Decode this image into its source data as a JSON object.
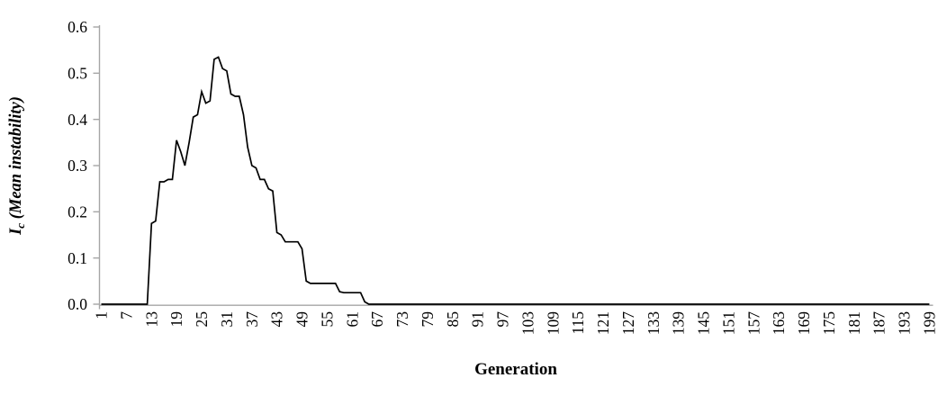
{
  "figure": {
    "background_color": "#ffffff",
    "series_color": "#000000",
    "axis_color": "#a6a6a6",
    "text_color": "#000000"
  },
  "chart_data": {
    "type": "line",
    "title": "",
    "xlabel": "Generation",
    "ylabel": "Ic (Mean instability)",
    "ylabel_parts": {
      "symbol": "I",
      "subscript": "c",
      "rest": " (Mean instability)"
    },
    "legend": "none",
    "grid": "off",
    "ylim": [
      0,
      0.6
    ],
    "y_tick_labels": [
      "0.6",
      "0.5",
      "0.4",
      "0.3",
      "0.2",
      "0.1",
      "0.0"
    ],
    "x_start": 1,
    "x_end": 199,
    "x_tick_step": 6,
    "x_tick_labels": [
      1,
      7,
      13,
      19,
      25,
      31,
      37,
      43,
      49,
      55,
      61,
      67,
      73,
      79,
      85,
      91,
      97,
      103,
      109,
      115,
      121,
      127,
      133,
      139,
      145,
      151,
      157,
      163,
      169,
      175,
      181,
      187,
      193,
      199
    ],
    "x_tick_label_rotation": -90,
    "series": [
      {
        "name": "mean instability",
        "x_first": 1,
        "values": [
          0,
          0,
          0,
          0,
          0,
          0,
          0,
          0,
          0,
          0,
          0,
          0,
          0.175,
          0.18,
          0.265,
          0.265,
          0.27,
          0.27,
          0.355,
          0.33,
          0.3,
          0.35,
          0.405,
          0.41,
          0.46,
          0.435,
          0.44,
          0.53,
          0.535,
          0.51,
          0.505,
          0.455,
          0.45,
          0.45,
          0.41,
          0.34,
          0.3,
          0.295,
          0.27,
          0.27,
          0.25,
          0.245,
          0.155,
          0.15,
          0.135,
          0.135,
          0.135,
          0.135,
          0.12,
          0.05,
          0.045,
          0.045,
          0.045,
          0.045,
          0.045,
          0.045,
          0.045,
          0.027,
          0.025,
          0.025,
          0.025,
          0.025,
          0.025,
          0.005,
          0,
          0,
          0,
          0,
          0,
          0,
          0,
          0,
          0,
          0,
          0,
          0,
          0,
          0,
          0,
          0,
          0,
          0,
          0,
          0,
          0,
          0,
          0,
          0,
          0,
          0,
          0,
          0,
          0,
          0,
          0,
          0,
          0,
          0,
          0,
          0,
          0,
          0,
          0,
          0,
          0,
          0,
          0,
          0,
          0,
          0,
          0,
          0,
          0,
          0,
          0,
          0,
          0,
          0,
          0,
          0,
          0,
          0,
          0,
          0,
          0,
          0,
          0,
          0,
          0,
          0,
          0,
          0,
          0,
          0,
          0,
          0,
          0,
          0,
          0,
          0,
          0,
          0,
          0,
          0,
          0,
          0,
          0,
          0,
          0,
          0,
          0,
          0,
          0,
          0,
          0,
          0,
          0,
          0,
          0,
          0,
          0,
          0,
          0,
          0,
          0,
          0,
          0,
          0,
          0,
          0,
          0,
          0,
          0,
          0,
          0,
          0,
          0,
          0,
          0,
          0,
          0,
          0,
          0,
          0,
          0,
          0,
          0,
          0,
          0,
          0,
          0,
          0,
          0,
          0,
          0,
          0,
          0,
          0,
          0
        ]
      }
    ]
  }
}
